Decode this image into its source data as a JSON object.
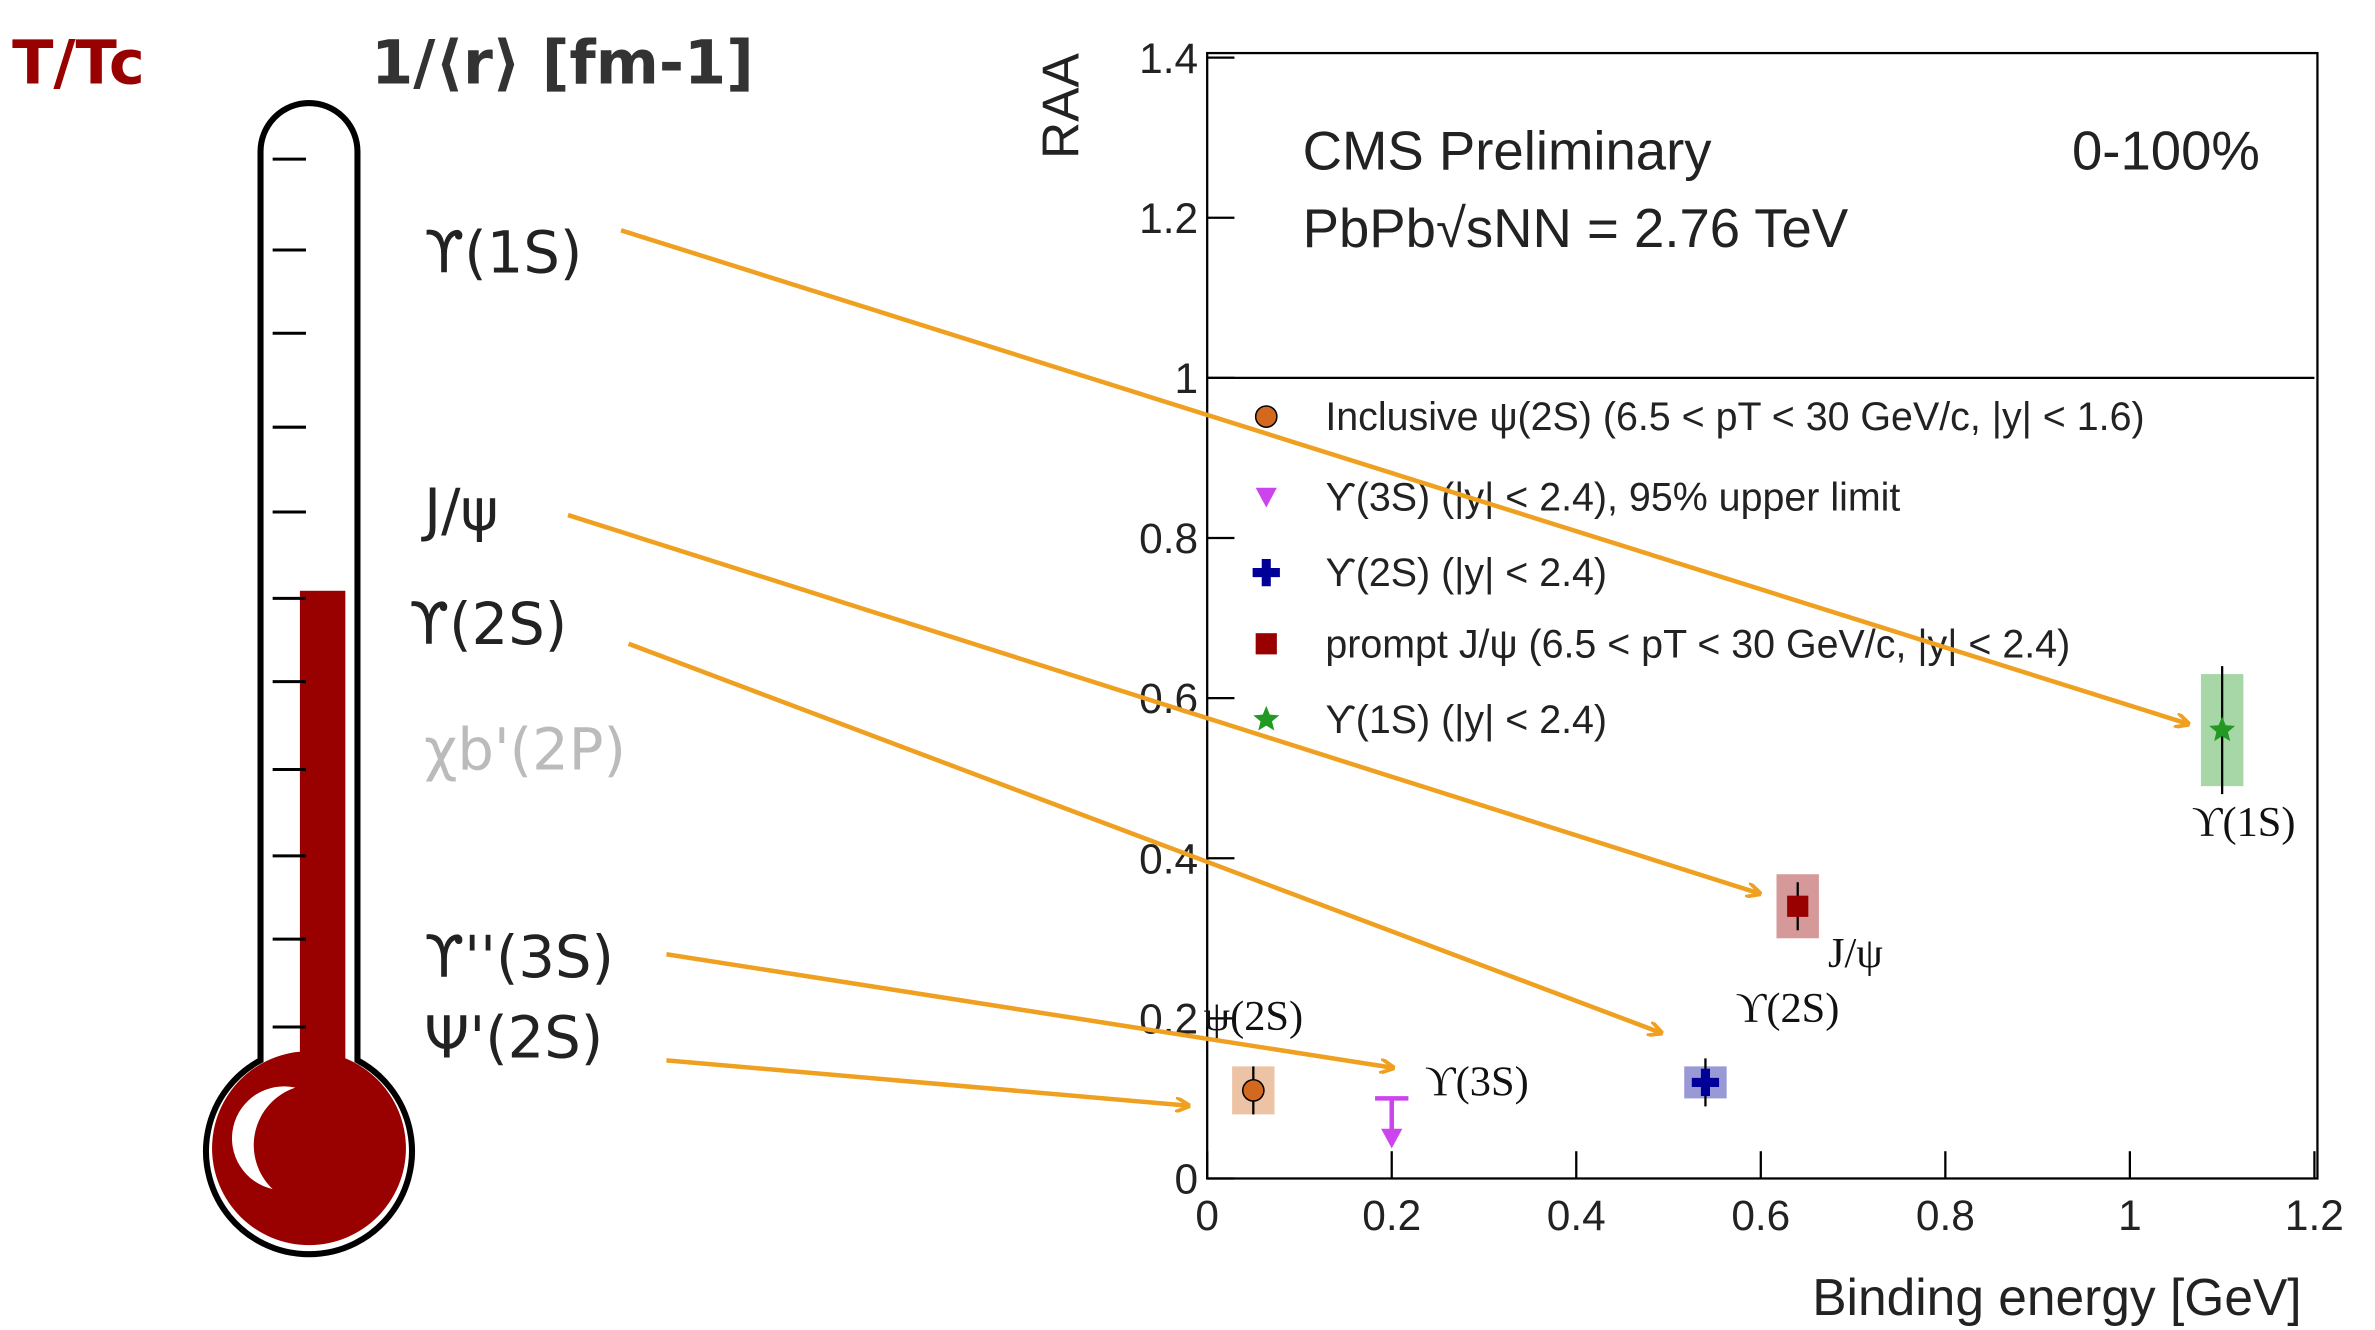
{
  "header": {
    "temperature_label": "T/Tc",
    "radius_label": "1/⟨r⟩ [fm-1]"
  },
  "thermometer_labels": [
    "ϒ(1S)",
    "J/ψ",
    "ϒ(2S)",
    "χb'(2P)",
    "ϒ''(3S)",
    "Ψ'(2S)"
  ],
  "chart_data": {
    "type": "scatter",
    "title": "CMS Preliminary",
    "subtitle": "PbPb√sNN = 2.76 TeV",
    "annotations": [
      "0-100%"
    ],
    "xlabel": "Binding energy [GeV]",
    "ylabel": "RAA",
    "xlim": [
      0,
      1.2
    ],
    "xticks": [
      0,
      0.2,
      0.4,
      0.6,
      0.8,
      1,
      1.2
    ],
    "ylim": [
      0,
      1.4
    ],
    "yticks": [
      0,
      0.2,
      0.4,
      0.6,
      0.8,
      1,
      1.2,
      1.4
    ],
    "reference_line": 1,
    "series": [
      {
        "name": "Inclusive ψ(2S) (6.5 < pT < 30 GeV/c, |y| < 1.6)",
        "label": "ψ(2S)",
        "marker": "circle",
        "color": "#d2691e",
        "x": [
          0.05
        ],
        "values": [
          0.11
        ],
        "errors": [
          0.03
        ],
        "syst": [
          0.03
        ]
      },
      {
        "name": "ϒ(3S) (|y| < 2.4), 95% upper limit",
        "label": "ϒ(3S)",
        "marker": "triangle-down",
        "color": "#cc44ee",
        "x": [
          0.2
        ],
        "values": [
          0.1
        ],
        "errors": [
          null
        ],
        "syst": [
          null
        ]
      },
      {
        "name": "ϒ(2S) (|y| < 2.4)",
        "label": "ϒ(2S)",
        "marker": "cross",
        "color": "#000099",
        "x": [
          0.54
        ],
        "values": [
          0.12
        ],
        "errors": [
          0.03
        ],
        "syst": [
          0.02
        ]
      },
      {
        "name": "prompt J/ψ (6.5 < pT < 30 GeV/c, |y| < 2.4)",
        "label": "J/ψ",
        "marker": "square",
        "color": "#990000",
        "x": [
          0.64
        ],
        "values": [
          0.34
        ],
        "errors": [
          0.03
        ],
        "syst": [
          0.04
        ]
      },
      {
        "name": "ϒ(1S) (|y| < 2.4)",
        "label": "ϒ(1S)",
        "marker": "star",
        "color": "#229922",
        "x": [
          1.1
        ],
        "values": [
          0.56
        ],
        "errors": [
          0.08
        ],
        "syst": [
          0.07
        ]
      }
    ]
  }
}
